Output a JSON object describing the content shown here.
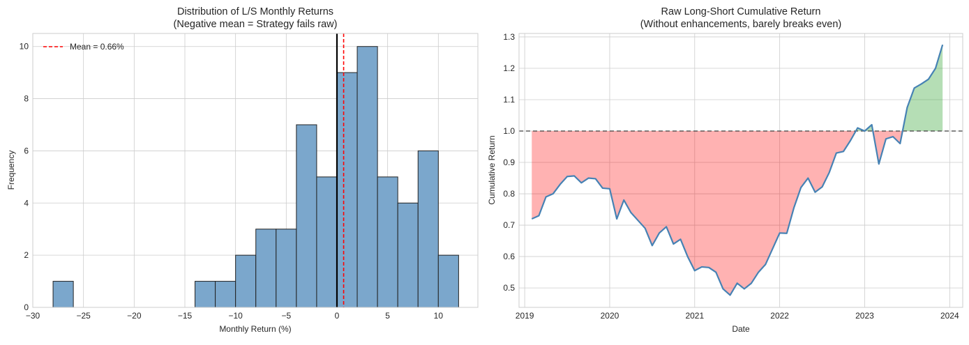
{
  "chart_data": [
    {
      "type": "bar",
      "title": "Distribution of L/S Monthly Returns",
      "subtitle": "(Negative mean = Strategy fails raw)",
      "xlabel": "Monthly Return (%)",
      "ylabel": "Frequency",
      "xlim": [
        -30,
        13.9
      ],
      "ylim": [
        0,
        10.5
      ],
      "xticks": [
        -30,
        -25,
        -20,
        -15,
        -10,
        -5,
        0,
        5,
        10
      ],
      "xtick_labels": [
        "−30",
        "−25",
        "−20",
        "−15",
        "−10",
        "−5",
        "0",
        "5",
        "10"
      ],
      "yticks": [
        0,
        2,
        4,
        6,
        8,
        10
      ],
      "grid": true,
      "bin_edges": [
        -28,
        -26,
        -24,
        -22,
        -20,
        -18,
        -16,
        -14,
        -12,
        -10,
        -8,
        -6,
        -4,
        -2,
        0,
        2,
        4,
        6,
        8,
        10,
        12
      ],
      "counts": [
        1,
        0,
        0,
        0,
        0,
        0,
        0,
        1,
        1,
        2,
        3,
        3,
        7,
        5,
        9,
        10,
        5,
        4,
        6,
        2
      ],
      "bar_color": "#7ba7cc",
      "edge_color": "#222222",
      "zero_line": {
        "x": 0,
        "color": "#000000"
      },
      "mean_line": {
        "x": 0.66,
        "color": "#ff0000",
        "label": "Mean = 0.66%"
      },
      "legend_position": "top-left"
    },
    {
      "type": "line",
      "title": "Raw Long-Short Cumulative Return",
      "subtitle": "(Without enhancements, barely breaks even)",
      "xlabel": "Date",
      "ylabel": "Cumulative Return",
      "xlim": [
        "2018-11",
        "2024-02"
      ],
      "ylim": [
        0.438,
        1.311
      ],
      "xticks": [
        "2019",
        "2020",
        "2021",
        "2022",
        "2023",
        "2024"
      ],
      "yticks": [
        "0.5",
        "0.6",
        "0.7",
        "0.8",
        "0.9",
        "1.0",
        "1.1",
        "1.2",
        "1.3"
      ],
      "grid": true,
      "line_color": "#4682b4",
      "baseline": {
        "y": 1.0,
        "color": "#444444"
      },
      "fill_below_color": "#ff0000",
      "fill_above_color": "#2ca02c",
      "x": [
        "2019-02",
        "2019-03",
        "2019-04",
        "2019-05",
        "2019-06",
        "2019-07",
        "2019-08",
        "2019-09",
        "2019-10",
        "2019-11",
        "2019-12",
        "2020-01",
        "2020-02",
        "2020-03",
        "2020-04",
        "2020-05",
        "2020-06",
        "2020-07",
        "2020-08",
        "2020-09",
        "2020-10",
        "2020-11",
        "2020-12",
        "2021-01",
        "2021-02",
        "2021-03",
        "2021-04",
        "2021-05",
        "2021-06",
        "2021-07",
        "2021-08",
        "2021-09",
        "2021-10",
        "2021-11",
        "2021-12",
        "2022-01",
        "2022-02",
        "2022-03",
        "2022-04",
        "2022-05",
        "2022-06",
        "2022-07",
        "2022-08",
        "2022-09",
        "2022-10",
        "2022-11",
        "2022-12",
        "2023-01",
        "2023-02",
        "2023-03",
        "2023-04",
        "2023-05",
        "2023-06",
        "2023-07",
        "2023-08",
        "2023-09",
        "2023-10",
        "2023-11",
        "2023-12"
      ],
      "y": [
        0.72,
        0.73,
        0.79,
        0.8,
        0.83,
        0.855,
        0.857,
        0.835,
        0.85,
        0.848,
        0.818,
        0.816,
        0.72,
        0.78,
        0.74,
        0.715,
        0.69,
        0.635,
        0.675,
        0.695,
        0.64,
        0.655,
        0.6,
        0.555,
        0.567,
        0.565,
        0.55,
        0.497,
        0.477,
        0.515,
        0.497,
        0.515,
        0.55,
        0.575,
        0.625,
        0.675,
        0.674,
        0.755,
        0.82,
        0.85,
        0.805,
        0.822,
        0.868,
        0.93,
        0.935,
        0.97,
        1.01,
        1.0,
        1.02,
        0.895,
        0.975,
        0.982,
        0.96,
        1.075,
        1.137,
        1.15,
        1.165,
        1.2,
        1.275
      ]
    }
  ]
}
